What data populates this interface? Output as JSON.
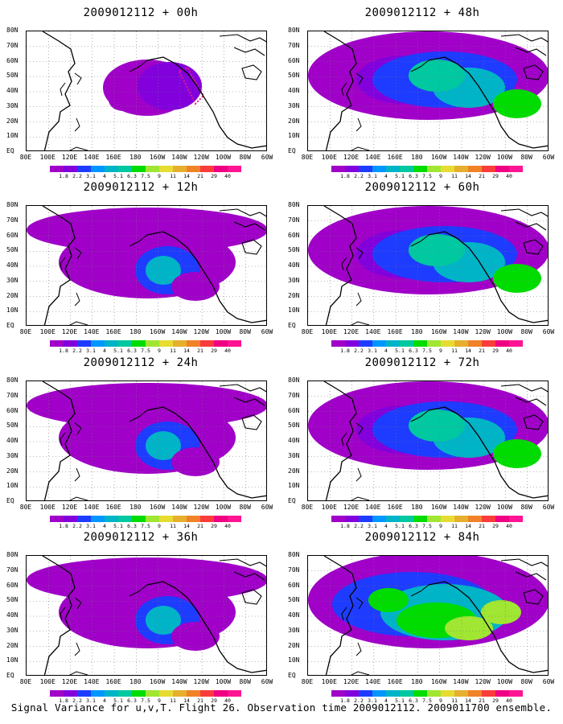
{
  "panels": [
    {
      "title": "2009012112 + 00h"
    },
    {
      "title": "2009012112 + 48h"
    },
    {
      "title": "2009012112 + 12h"
    },
    {
      "title": "2009012112 + 60h"
    },
    {
      "title": "2009012112 + 24h"
    },
    {
      "title": "2009012112 + 72h"
    },
    {
      "title": "2009012112 + 36h"
    },
    {
      "title": "2009012112 + 84h"
    }
  ],
  "lat_labels": [
    "80N",
    "70N",
    "60N",
    "50N",
    "40N",
    "30N",
    "20N",
    "10N",
    "EQ"
  ],
  "lon_labels": [
    "80E",
    "100E",
    "120E",
    "140E",
    "160E",
    "180",
    "160W",
    "140W",
    "120W",
    "100W",
    "80W",
    "60W"
  ],
  "colorbar": {
    "labels": [
      "1.8",
      "2.2",
      "3.1",
      "4",
      "5.1",
      "6.3",
      "7.5",
      "9",
      "11",
      "14",
      "21",
      "29",
      "40"
    ],
    "colors": [
      "#a000c8",
      "#8200dc",
      "#1e3cff",
      "#0096ff",
      "#00b4c8",
      "#00c8a0",
      "#00dc00",
      "#a0e632",
      "#e6dc32",
      "#e6af2d",
      "#f08228",
      "#fa3c3c",
      "#f00082",
      "#ff1493"
    ]
  },
  "caption": "Signal Variance for u,v,T. Flight 26. Observation time 2009012112. 2009011700 ensemble."
}
